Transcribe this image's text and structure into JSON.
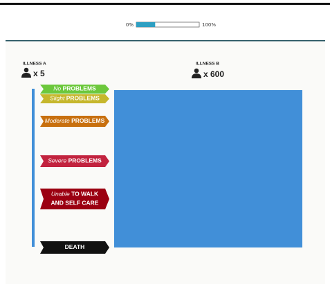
{
  "progress": {
    "start_label": "0%",
    "end_label": "100%",
    "value": 30,
    "color": "#2e9fc2"
  },
  "illness_a": {
    "title": "ILLNESS A",
    "count": "x 5"
  },
  "illness_b": {
    "title": "ILLNESS B",
    "count": "x 600",
    "color": "#418fd8"
  },
  "scale": [
    {
      "qualifier": "No",
      "label": "PROBLEMS",
      "color": "#6cc83c"
    },
    {
      "qualifier": "Slight",
      "label": "PROBLEMS",
      "color": "#c6b72c"
    },
    {
      "qualifier": "Moderate",
      "label": "PROBLEMS",
      "color": "#c8700f"
    },
    {
      "qualifier": "Severe",
      "label": "PROBLEMS",
      "color": "#c2233f"
    },
    {
      "qualifier": "Unable",
      "label": "TO WALK",
      "label2": "AND SELF CARE",
      "color": "#9b0011"
    },
    {
      "label": "DEATH",
      "color": "#111111"
    }
  ]
}
